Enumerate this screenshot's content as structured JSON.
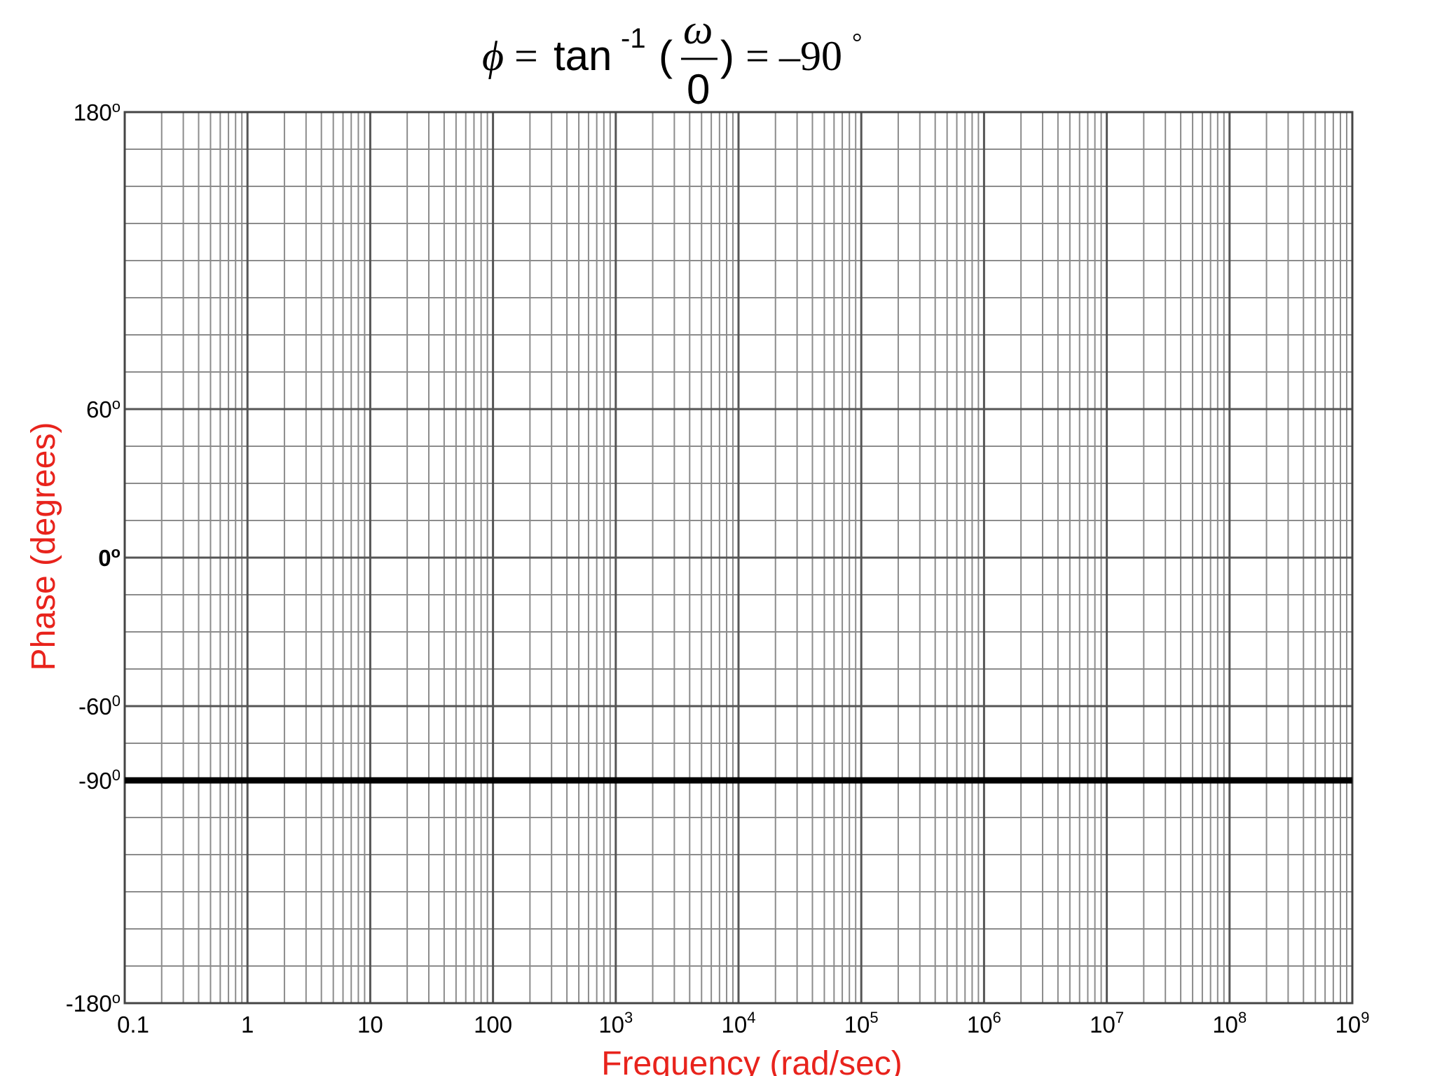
{
  "chart_data": {
    "type": "line",
    "title": {
      "phi": "ϕ",
      "equals": "=",
      "tan": "tan",
      "inverse": "-1",
      "numerator": "ω",
      "denominator": "0",
      "open": "(",
      "close": ")",
      "equals2": "=",
      "result": "–90",
      "degree": "°"
    },
    "xlabel": "Frequency (rad/sec)",
    "ylabel": "Phase (degrees)",
    "x_scale": "log",
    "xlim": [
      0.1,
      1000000000
    ],
    "ylim": [
      -180,
      180
    ],
    "grid": true,
    "x_ticks": [
      {
        "value": 0.1,
        "base": "0.1",
        "sup": ""
      },
      {
        "value": 1,
        "base": "1",
        "sup": ""
      },
      {
        "value": 10,
        "base": "10",
        "sup": ""
      },
      {
        "value": 100,
        "base": "100",
        "sup": ""
      },
      {
        "value": 1000,
        "base": "10",
        "sup": "3"
      },
      {
        "value": 10000,
        "base": "10",
        "sup": "4"
      },
      {
        "value": 100000,
        "base": "10",
        "sup": "5"
      },
      {
        "value": 1000000,
        "base": "10",
        "sup": "6"
      },
      {
        "value": 10000000,
        "base": "10",
        "sup": "7"
      },
      {
        "value": 100000000,
        "base": "10",
        "sup": "8"
      },
      {
        "value": 1000000000,
        "base": "10",
        "sup": "9"
      }
    ],
    "y_ticks": [
      {
        "value": 180,
        "base": "180",
        "sup": "o",
        "bold": false
      },
      {
        "value": 60,
        "base": "60",
        "sup": "o",
        "bold": false
      },
      {
        "value": 0,
        "base": "0",
        "sup": "o",
        "bold": true
      },
      {
        "value": -60,
        "base": "-60",
        "sup": "0",
        "bold": false
      },
      {
        "value": -90,
        "base": "-90",
        "sup": "0",
        "bold": false
      },
      {
        "value": -180,
        "base": "-180",
        "sup": "o",
        "bold": false
      }
    ],
    "series": [
      {
        "x": [
          0.1,
          1000000000
        ],
        "y": [
          -90,
          -90
        ]
      }
    ],
    "colors": {
      "axis_label": "#e8231c",
      "line": "#000000",
      "grid_major": "#555555",
      "grid_minor": "#8c8c8c"
    }
  }
}
